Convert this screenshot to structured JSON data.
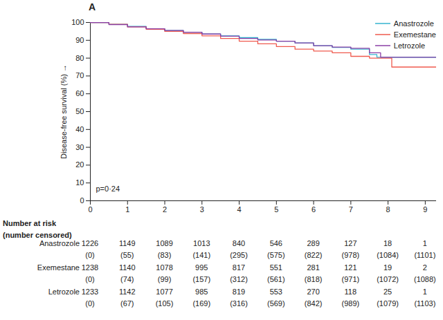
{
  "chart_data": {
    "type": "line",
    "title": "A",
    "ylabel": "Disease-free survival (%)",
    "xlim": [
      0,
      9.3
    ],
    "xticks": [
      0,
      1,
      2,
      3,
      4,
      5,
      6,
      7,
      8,
      9
    ],
    "ylim": [
      0,
      100
    ],
    "yticks": [
      0,
      10,
      20,
      30,
      40,
      50,
      60,
      70,
      80,
      90,
      100
    ],
    "grid": false,
    "legend": "top-right",
    "line_style": "step",
    "annotations": [
      "p=0·24"
    ],
    "series": [
      {
        "name": "Anastrozole",
        "color": "#35b3cf",
        "x": [
          0,
          0.5,
          1,
          1.5,
          2,
          2.5,
          3,
          3.5,
          4,
          4.5,
          5,
          5.5,
          6,
          6.5,
          7,
          7.5,
          7.7,
          9.3
        ],
        "values": [
          100,
          99,
          97.8,
          96.5,
          95.5,
          94.5,
          93.5,
          92.5,
          91.5,
          90.5,
          89.5,
          88.5,
          87,
          86,
          85,
          82,
          80.5,
          80.5
        ]
      },
      {
        "name": "Exemestane",
        "color": "#ef5a4e",
        "x": [
          0,
          0.5,
          1,
          1.5,
          2,
          2.5,
          3,
          3.5,
          4,
          4.5,
          5,
          5.5,
          6,
          6.5,
          7,
          7.5,
          8.1,
          9.3
        ],
        "values": [
          100,
          99,
          97.5,
          96.2,
          95,
          93.8,
          92.5,
          91,
          89.5,
          88,
          86.5,
          85,
          84,
          83,
          81,
          80,
          75,
          75
        ]
      },
      {
        "name": "Letrozole",
        "color": "#8b3fa6",
        "x": [
          0,
          0.5,
          1,
          1.5,
          2,
          2.5,
          3,
          3.5,
          4,
          4.5,
          5,
          5.5,
          6,
          6.5,
          7,
          7.5,
          7.8,
          9.3
        ],
        "values": [
          100,
          98.8,
          97.5,
          96.5,
          95.5,
          94.5,
          93.5,
          92.3,
          91,
          90.2,
          89.5,
          88.5,
          87,
          86.2,
          85.5,
          83,
          80.5,
          80.5
        ]
      }
    ],
    "risk_table": {
      "title": "Number at risk",
      "subtitle": "(number censored)",
      "times": [
        0,
        1,
        2,
        3,
        4,
        5,
        6,
        7,
        8,
        9
      ],
      "rows": [
        {
          "name": "Anastrozole",
          "at_risk": [
            1226,
            1149,
            1089,
            1013,
            840,
            546,
            289,
            127,
            18,
            1
          ],
          "censored": [
            "(0)",
            "(55)",
            "(83)",
            "(141)",
            "(295)",
            "(575)",
            "(822)",
            "(978)",
            "(1084)",
            "(1101)"
          ]
        },
        {
          "name": "Exemestane",
          "at_risk": [
            1238,
            1140,
            1078,
            995,
            817,
            551,
            281,
            121,
            19,
            2
          ],
          "censored": [
            "(0)",
            "(74)",
            "(99)",
            "(157)",
            "(312)",
            "(561)",
            "(818)",
            "(971)",
            "(1072)",
            "(1088)"
          ]
        },
        {
          "name": "Letrozole",
          "at_risk": [
            1233,
            1142,
            1077,
            985,
            819,
            553,
            270,
            118,
            25,
            1
          ],
          "censored": [
            "(0)",
            "(67)",
            "(105)",
            "(169)",
            "(316)",
            "(569)",
            "(842)",
            "(989)",
            "(1079)",
            "(1103)"
          ]
        }
      ]
    }
  }
}
